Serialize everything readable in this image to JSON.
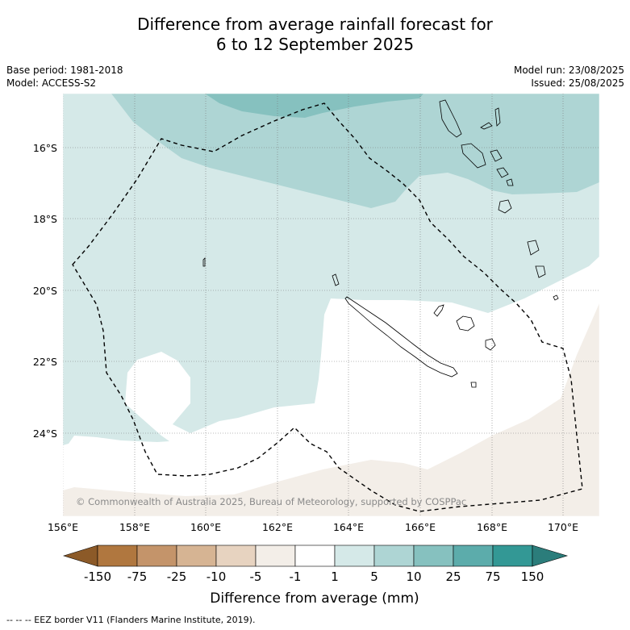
{
  "title_line1": "Difference from average rainfall forecast for",
  "title_line2": "6 to 12 September 2025",
  "meta": {
    "base_period": "Base period: 1981-2018",
    "model": "Model: ACCESS-S2",
    "model_run": "Model run: 23/08/2025",
    "issued": "Issued: 25/08/2025"
  },
  "map": {
    "lat_labels": [
      "16°S",
      "18°S",
      "20°S",
      "22°S",
      "24°S"
    ],
    "lon_labels": [
      "156°E",
      "158°E",
      "160°E",
      "162°E",
      "164°E",
      "166°E",
      "168°E",
      "170°E"
    ],
    "copyright": "© Commonwealth of Australia 2025, Bureau of Meteorology, supported by COSPPac",
    "colors": {
      "drier_small": "#f3eee8",
      "neutral": "#ffffff",
      "wetter_1_5": "#d5e9e8",
      "wetter_5_10": "#aed5d4",
      "wetter_10_25": "#86c1bf",
      "eez_border": "#000000"
    }
  },
  "colorbar": {
    "ticks": [
      "-150",
      "-75",
      "-25",
      "-10",
      "-5",
      "-1",
      "1",
      "5",
      "10",
      "25",
      "75",
      "150"
    ],
    "colors": [
      "#8c5a28",
      "#b0773f",
      "#c4946a",
      "#d6b493",
      "#e7d3c0",
      "#f3eee8",
      "#ffffff",
      "#d5e9e8",
      "#aed5d4",
      "#86c1bf",
      "#5cacab",
      "#339895",
      "#2b7d7b"
    ],
    "label": "Difference from average (mm)"
  },
  "footnote": "--  --  -- EEZ border V11 (Flanders Marine Institute, 2019)."
}
